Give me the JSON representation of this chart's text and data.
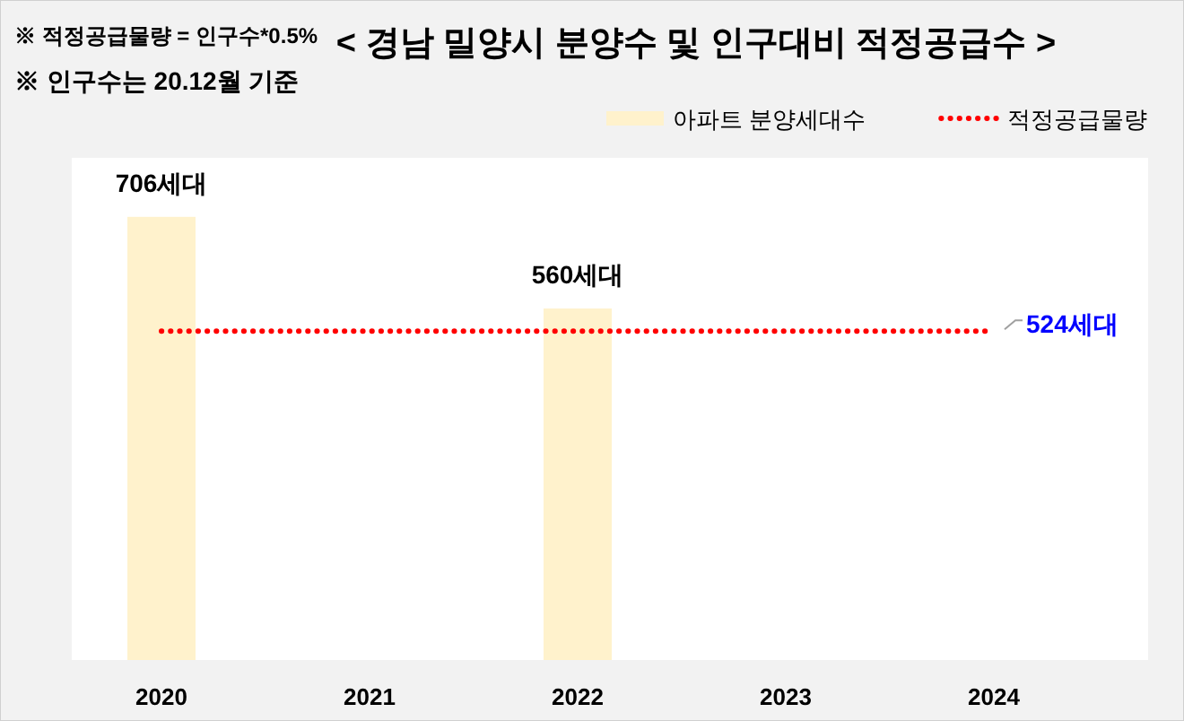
{
  "chart_data": {
    "type": "bar",
    "title": "< 경남 밀양시 분양수 및 인구대비 적정공급수 >",
    "annotations": [
      "※ 적정공급물량 = 인구수*0.5%",
      "※ 인구수는 20.12월 기준"
    ],
    "categories": [
      "2020",
      "2021",
      "2022",
      "2023",
      "2024"
    ],
    "ylim": [
      0,
      800
    ],
    "legend": "top right",
    "series": [
      {
        "name": "아파트 분양세대수",
        "color": "#fff2cc",
        "values": [
          706,
          null,
          560,
          null,
          null
        ],
        "value_labels": [
          "706세대",
          null,
          "560세대",
          null,
          null
        ]
      },
      {
        "name": "적정공급물량",
        "type": "line",
        "color": "#ff0000",
        "line_style": "dotted",
        "marker": "none",
        "values": [
          524,
          524,
          524,
          524,
          524
        ],
        "value_labels": [
          null,
          null,
          null,
          null,
          "524세대"
        ]
      }
    ]
  }
}
